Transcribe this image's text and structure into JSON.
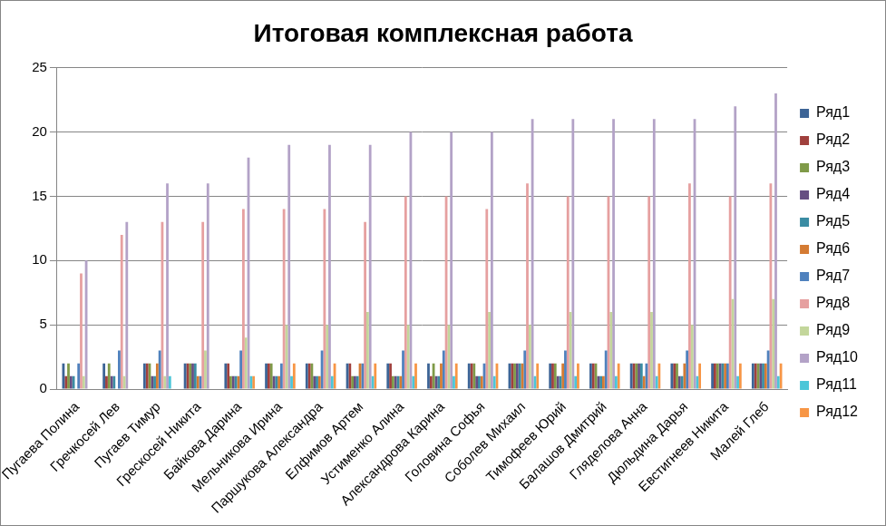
{
  "chart_data": {
    "type": "bar",
    "title": "Итоговая комплексная работа",
    "categories": [
      "Пугаева Полина",
      "Гречкосей Лев",
      "Пугаев Тимур",
      "Грескосей Никита",
      "Байкова Дарина",
      "Мельникова Ирина",
      "Паршукова Александра",
      "Елфимов Артем",
      "Устименко Алина",
      "Александрова Карина",
      "Головина Софья",
      "Соболев Михаил",
      "Тимофеев Юрий",
      "Балашов Дмитрий",
      "Гляделова Анна",
      "Дюльдина Дарья",
      "Евстигнеев Никита",
      "Малей Глеб"
    ],
    "series": [
      {
        "name": "Ряд1",
        "color": "#3c6496",
        "values": [
          2,
          2,
          2,
          2,
          2,
          2,
          2,
          2,
          2,
          2,
          2,
          2,
          2,
          2,
          2,
          2,
          2,
          2
        ]
      },
      {
        "name": "Ряд2",
        "color": "#a0403d",
        "values": [
          1,
          1,
          2,
          2,
          2,
          2,
          2,
          2,
          2,
          1,
          2,
          2,
          2,
          2,
          2,
          2,
          2,
          2
        ]
      },
      {
        "name": "Ряд3",
        "color": "#7f9a48",
        "values": [
          2,
          2,
          2,
          2,
          1,
          2,
          2,
          1,
          1,
          2,
          2,
          2,
          2,
          2,
          2,
          2,
          2,
          2
        ]
      },
      {
        "name": "Ряд4",
        "color": "#664e82",
        "values": [
          1,
          1,
          1,
          2,
          1,
          1,
          1,
          1,
          1,
          1,
          1,
          2,
          1,
          1,
          2,
          1,
          2,
          2
        ]
      },
      {
        "name": "Ряд5",
        "color": "#3a8ca3",
        "values": [
          1,
          1,
          1,
          2,
          1,
          1,
          1,
          1,
          1,
          1,
          1,
          2,
          1,
          1,
          2,
          1,
          2,
          2
        ]
      },
      {
        "name": "Ряд6",
        "color": "#d47b33",
        "values": [
          0,
          0,
          2,
          1,
          1,
          1,
          1,
          2,
          1,
          2,
          1,
          2,
          2,
          1,
          1,
          2,
          2,
          2
        ]
      },
      {
        "name": "Ряд7",
        "color": "#4f81bd",
        "values": [
          2,
          3,
          3,
          1,
          3,
          2,
          3,
          2,
          3,
          3,
          2,
          3,
          3,
          3,
          2,
          3,
          2,
          3
        ]
      },
      {
        "name": "Ряд8",
        "color": "#e6a0a0",
        "values": [
          9,
          12,
          13,
          13,
          14,
          14,
          14,
          13,
          15,
          15,
          14,
          16,
          15,
          15,
          15,
          16,
          15,
          16
        ]
      },
      {
        "name": "Ряд9",
        "color": "#c3d69b",
        "values": [
          1,
          1,
          1,
          3,
          4,
          5,
          5,
          6,
          5,
          5,
          6,
          5,
          6,
          6,
          6,
          5,
          7,
          7
        ]
      },
      {
        "name": "Ряд10",
        "color": "#b3a2c7",
        "values": [
          10,
          13,
          16,
          16,
          18,
          19,
          19,
          19,
          20,
          20,
          20,
          21,
          21,
          21,
          21,
          21,
          22,
          23
        ]
      },
      {
        "name": "Ряд11",
        "color": "#4bc6d8",
        "values": [
          0,
          0,
          1,
          0,
          1,
          1,
          1,
          1,
          1,
          1,
          1,
          1,
          1,
          1,
          1,
          1,
          1,
          1
        ]
      },
      {
        "name": "Ряд12",
        "color": "#f79646",
        "values": [
          0,
          0,
          0,
          0,
          1,
          2,
          2,
          2,
          2,
          2,
          2,
          2,
          2,
          2,
          2,
          2,
          2,
          2
        ]
      }
    ],
    "ylim": [
      0,
      25
    ],
    "yticks": [
      0,
      5,
      10,
      15,
      20,
      25
    ],
    "grid": true,
    "legend": "right"
  }
}
